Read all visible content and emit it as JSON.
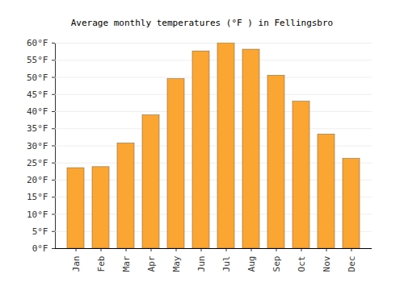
{
  "chart_data": {
    "type": "bar",
    "title": "Average monthly temperatures (°F ) in Fellingsbro",
    "categories": [
      "Jan",
      "Feb",
      "Mar",
      "Apr",
      "May",
      "Jun",
      "Jul",
      "Aug",
      "Sep",
      "Oct",
      "Nov",
      "Dec"
    ],
    "values": [
      23.5,
      23.8,
      30.7,
      38.9,
      49.5,
      57.6,
      60.0,
      58.1,
      50.5,
      42.9,
      33.3,
      26.2
    ],
    "color": "#fba632",
    "ylim": [
      0,
      60
    ],
    "yticks": [
      {
        "value": 0,
        "label": "0°F"
      },
      {
        "value": 5,
        "label": "5°F"
      },
      {
        "value": 10,
        "label": "10°F"
      },
      {
        "value": 15,
        "label": "15°F"
      },
      {
        "value": 20,
        "label": "20°F"
      },
      {
        "value": 25,
        "label": "25°F"
      },
      {
        "value": 30,
        "label": "30°F"
      },
      {
        "value": 35,
        "label": "35°F"
      },
      {
        "value": 40,
        "label": "40°F"
      },
      {
        "value": 45,
        "label": "45°F"
      },
      {
        "value": 50,
        "label": "50°F"
      },
      {
        "value": 55,
        "label": "55°F"
      },
      {
        "value": 60,
        "label": "60°F"
      }
    ],
    "grid": true
  }
}
